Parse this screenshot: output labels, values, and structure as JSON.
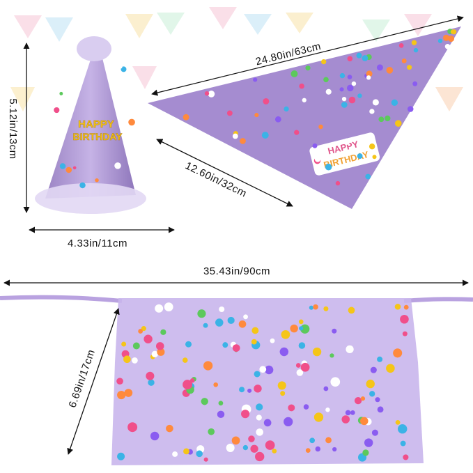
{
  "hat": {
    "height_label": "5.12in/13cm",
    "width_label": "4.33in/11cm",
    "print": [
      "HAPPY",
      "BIRTHDAY"
    ]
  },
  "bandana": {
    "long_side_label": "24.80in/63cm",
    "short_side_label": "12.60in/32cm",
    "print": [
      "HAPPY",
      "BIRTHDAY"
    ]
  },
  "tutu": {
    "width_label": "35.43in/90cm",
    "height_label": "6.69in/17cm"
  }
}
